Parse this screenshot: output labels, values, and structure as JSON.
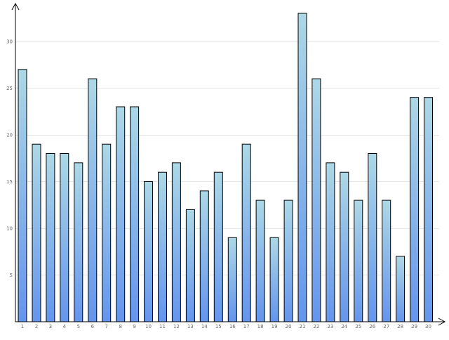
{
  "chart_data": {
    "type": "bar",
    "title": "",
    "xlabel": "",
    "ylabel": "",
    "categories": [
      "1",
      "2",
      "3",
      "4",
      "5",
      "6",
      "7",
      "8",
      "9",
      "10",
      "11",
      "12",
      "13",
      "14",
      "15",
      "16",
      "17",
      "18",
      "19",
      "20",
      "21",
      "22",
      "23",
      "24",
      "25",
      "26",
      "27",
      "28",
      "29",
      "30"
    ],
    "series": [
      {
        "values": [
          27,
          19,
          18,
          18,
          17,
          26,
          19,
          23,
          23,
          15,
          16,
          17,
          12,
          14,
          16,
          9,
          19,
          13,
          9,
          13,
          33,
          26,
          17,
          16,
          13,
          18,
          13,
          7,
          24,
          24
        ]
      }
    ],
    "ylim": [
      0,
      33
    ],
    "yticks": [
      5,
      10,
      15,
      20,
      25,
      30
    ],
    "grid": true,
    "legend": "none",
    "colors": {
      "bar_top": "#add8e6",
      "bar_bottom": "#6495ed",
      "bar_stroke": "#000000",
      "grid": "#e6e6e6",
      "axis": "#000000",
      "tick_label": "#666666"
    }
  }
}
